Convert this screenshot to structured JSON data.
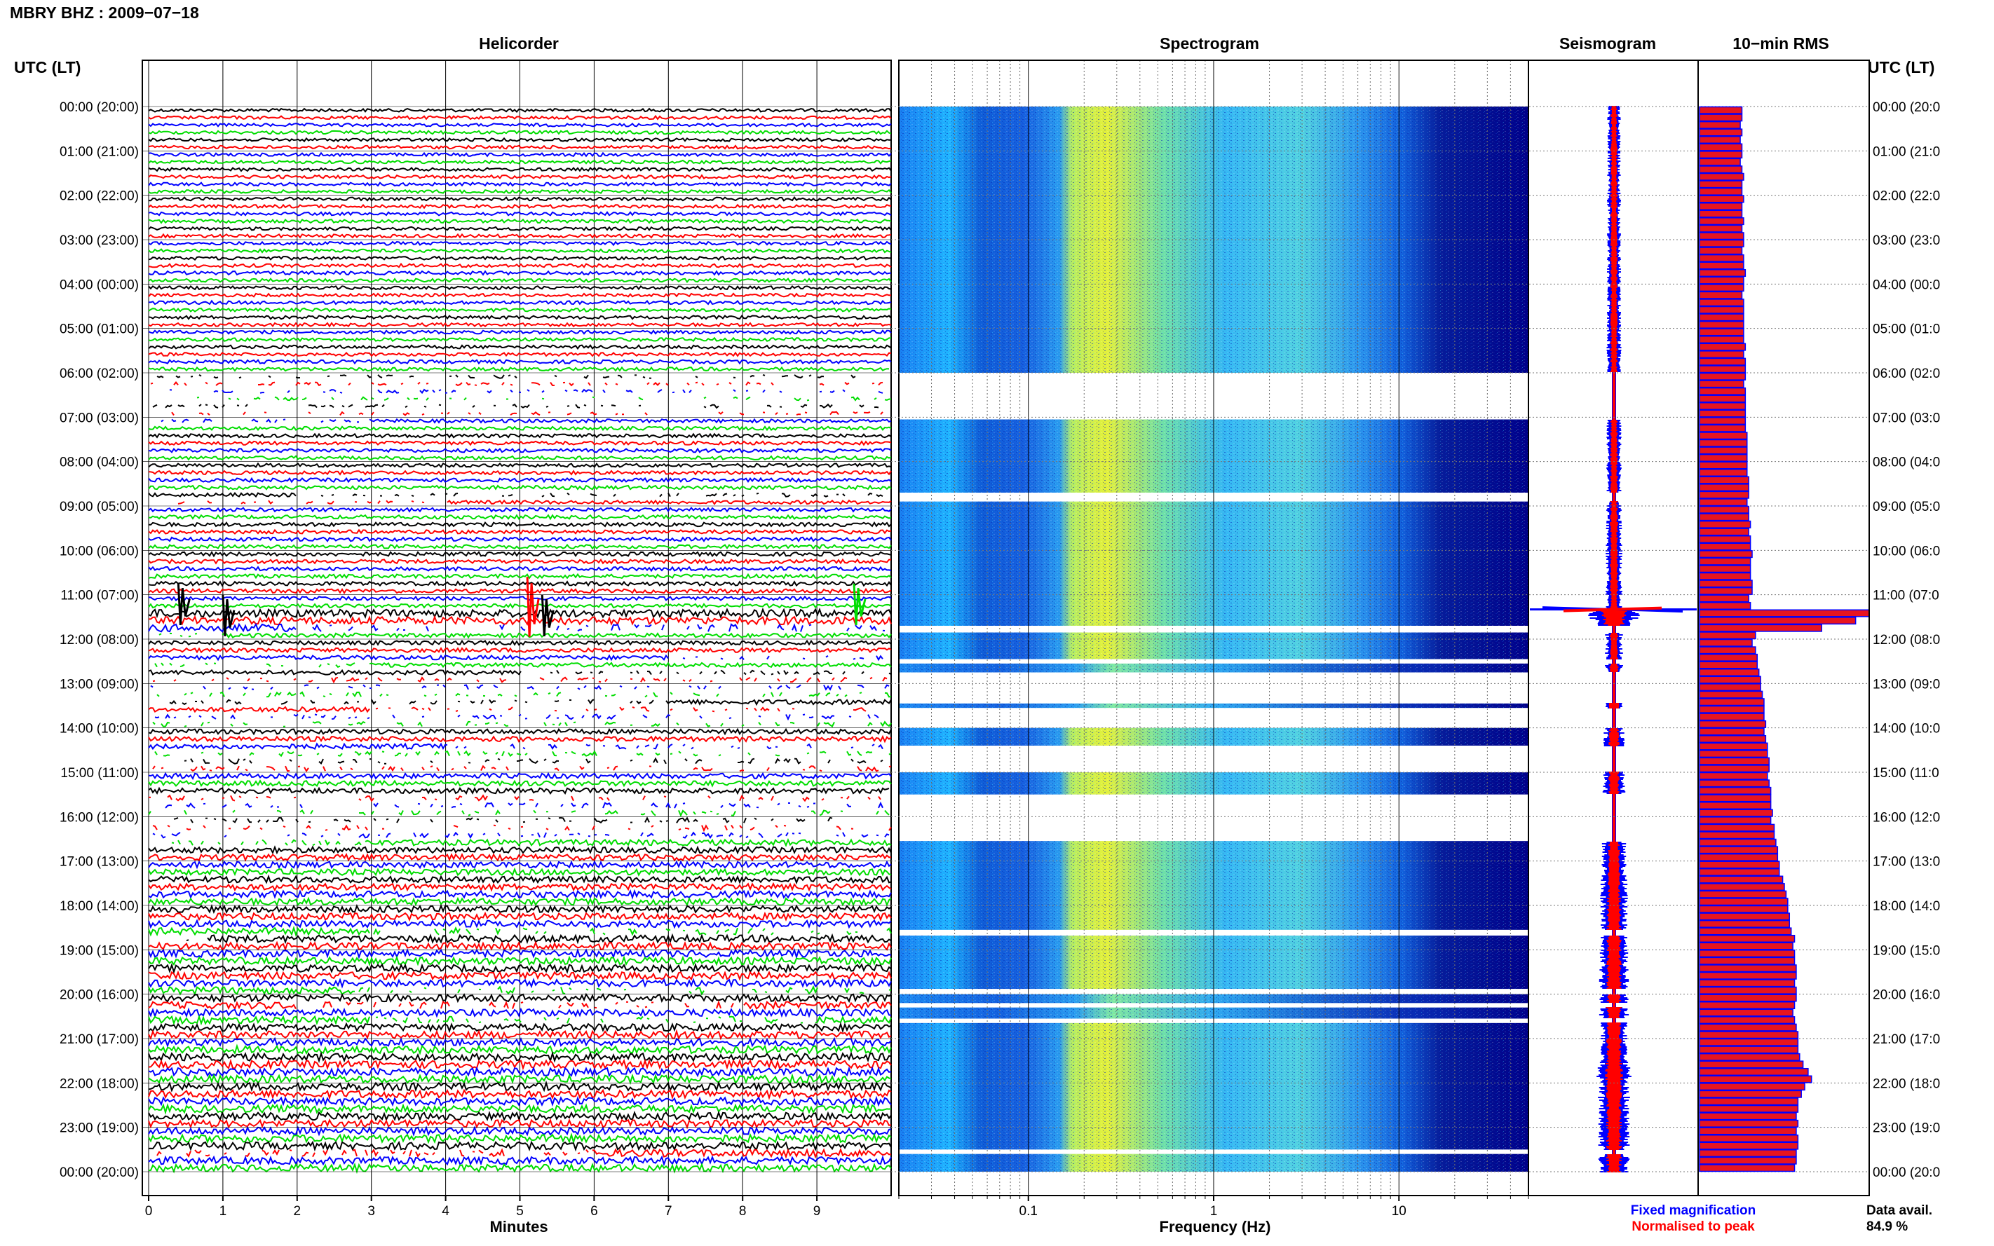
{
  "header": {
    "title": "MBRY BHZ : 2009−07−18"
  },
  "panels": {
    "helicorder": "Helicorder",
    "spectrogram": "Spectrogram",
    "seismogram": "Seismogram",
    "rms": "10−min RMS"
  },
  "axes": {
    "left_label": "UTC (LT)",
    "right_label": "UTC (LT)",
    "minutes_label": "Minutes",
    "frequency_label": "Frequency (Hz)"
  },
  "legend": {
    "fixed": "Fixed magnification",
    "fixed_color": "#0000ff",
    "normalised": "Normalised to peak",
    "normalised_color": "#ff0000",
    "data_avail_label": "Data avail.",
    "data_avail_value": "84.9 %"
  },
  "colors": {
    "trace_cycle": [
      "#000000",
      "#ff0000",
      "#0000ff",
      "#00dd00"
    ],
    "rms_fill": "#e8141e",
    "rms_edge": "#0000ff",
    "spec_low": "#00008f",
    "spec_mid": "#1fa0ff",
    "spec_high": "#e8f020"
  },
  "chart_data": {
    "type": "heatmap",
    "station": "MBRY",
    "channel": "BHZ",
    "date": "2009-07-18",
    "hour_labels": [
      "00:00 (20:00)",
      "01:00 (21:00)",
      "02:00 (22:00)",
      "03:00 (23:00)",
      "04:00 (00:00)",
      "05:00 (01:00)",
      "06:00 (02:00)",
      "07:00 (03:00)",
      "08:00 (04:00)",
      "09:00 (05:00)",
      "10:00 (06:00)",
      "11:00 (07:00)",
      "12:00 (08:00)",
      "13:00 (09:00)",
      "14:00 (10:00)",
      "15:00 (11:00)",
      "16:00 (12:00)",
      "17:00 (13:00)",
      "18:00 (14:00)",
      "19:00 (15:00)",
      "20:00 (16:00)",
      "21:00 (17:00)",
      "22:00 (18:00)",
      "23:00 (19:00)",
      "00:00 (20:00)"
    ],
    "right_hour_labels": [
      "00:00 (20:0",
      "01:00 (21:0",
      "02:00 (22:0",
      "03:00 (23:0",
      "04:00 (00:0",
      "05:00 (01:0",
      "06:00 (02:0",
      "07:00 (03:0",
      "08:00 (04:0",
      "09:00 (05:0",
      "10:00 (06:0",
      "11:00 (07:0",
      "12:00 (08:0",
      "13:00 (09:0",
      "14:00 (10:0",
      "15:00 (11:0",
      "16:00 (12:0",
      "17:00 (13:0",
      "18:00 (14:0",
      "19:00 (15:0",
      "20:00 (16:0",
      "21:00 (17:0",
      "22:00 (18:0",
      "23:00 (19:0",
      "00:00 (20:0"
    ],
    "minutes_ticks": [
      0,
      1,
      2,
      3,
      4,
      5,
      6,
      7,
      8,
      9
    ],
    "minutes_range": [
      0,
      10
    ],
    "frequency_ticks": [
      {
        "value": 0.1,
        "label": "0.1"
      },
      {
        "value": 1,
        "label": "1"
      },
      {
        "value": 10,
        "label": "10"
      }
    ],
    "frequency_range": [
      0.02,
      50
    ],
    "frequency_scale": "log",
    "helicorder_rows_per_hour": 6,
    "rms_10min_relative": [
      0.25,
      0.25,
      0.24,
      0.25,
      0.24,
      0.25,
      0.25,
      0.24,
      0.25,
      0.26,
      0.25,
      0.25,
      0.26,
      0.25,
      0.25,
      0.26,
      0.25,
      0.26,
      0.26,
      0.25,
      0.26,
      0.26,
      0.27,
      0.26,
      0.26,
      0.25,
      0.26,
      0.26,
      0.26,
      0.26,
      0.26,
      0.26,
      0.27,
      0.26,
      0.27,
      0.27,
      0.27,
      0.26,
      0.27,
      0.27,
      0.27,
      0.27,
      0.27,
      0.27,
      0.28,
      0.28,
      0.28,
      0.28,
      0.28,
      0.28,
      0.29,
      0.29,
      0.29,
      0.28,
      0.29,
      0.29,
      0.3,
      0.29,
      0.3,
      0.3,
      0.31,
      0.3,
      0.3,
      0.3,
      0.31,
      0.31,
      0.29,
      0.3,
      1.0,
      0.92,
      0.72,
      0.33,
      0.31,
      0.33,
      0.34,
      0.34,
      0.35,
      0.36,
      0.36,
      0.37,
      0.38,
      0.38,
      0.38,
      0.39,
      0.38,
      0.39,
      0.4,
      0.4,
      0.41,
      0.41,
      0.4,
      0.41,
      0.42,
      0.42,
      0.42,
      0.43,
      0.42,
      0.44,
      0.44,
      0.45,
      0.46,
      0.46,
      0.47,
      0.47,
      0.49,
      0.5,
      0.51,
      0.52,
      0.52,
      0.53,
      0.53,
      0.54,
      0.56,
      0.55,
      0.56,
      0.56,
      0.57,
      0.57,
      0.56,
      0.57,
      0.57,
      0.56,
      0.55,
      0.56,
      0.57,
      0.58,
      0.58,
      0.58,
      0.59,
      0.61,
      0.64,
      0.66,
      0.62,
      0.6,
      0.58,
      0.58,
      0.57,
      0.58,
      0.57,
      0.58,
      0.58,
      0.57,
      0.57,
      0.56
    ],
    "spectrogram_gaps_utc_hours": [
      [
        6.0,
        7.05
      ],
      [
        8.7,
        8.9
      ],
      [
        11.7,
        11.85
      ],
      [
        12.45,
        12.55
      ],
      [
        12.75,
        13.45
      ],
      [
        13.55,
        14.0
      ],
      [
        14.4,
        15.0
      ],
      [
        15.5,
        16.55
      ],
      [
        18.55,
        18.68
      ],
      [
        19.88,
        20.0
      ],
      [
        20.2,
        20.3
      ],
      [
        20.55,
        20.65
      ],
      [
        23.5,
        23.6
      ]
    ],
    "events": [
      {
        "utc": "11:00",
        "minute": 0.4
      },
      {
        "utc": "11:00",
        "minute": 1.0
      },
      {
        "utc": "11:00",
        "minute": 5.1
      },
      {
        "utc": "11:00",
        "minute": 5.3
      },
      {
        "utc": "11:00",
        "minute": 9.5
      }
    ]
  }
}
